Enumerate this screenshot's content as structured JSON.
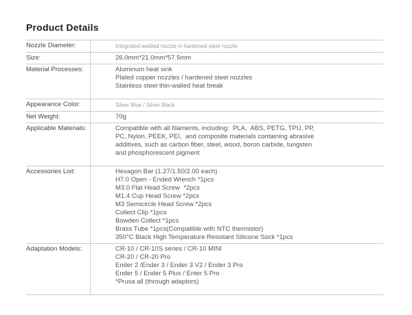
{
  "page": {
    "title": "Product Details"
  },
  "colors": {
    "background": "#ffffff",
    "title_text": "#1d1d1f",
    "label_text": "#474747",
    "value_text": "#565656",
    "muted_value_text": "#9c9c9c",
    "border": "#c9c9c9"
  },
  "table": {
    "rows": [
      {
        "label": "Nozzle Diameter:",
        "muted": true,
        "lines": [
          "Integrated welded nozzle in hardened steel nozzle"
        ]
      },
      {
        "label": "Size:",
        "lines": [
          "26.0mm*21.0mm*57.5mm"
        ]
      },
      {
        "label": "Material Processes:",
        "spacer": true,
        "lines": [
          "Aluminum heat sink",
          "Plated copper nozzles / hardened steel nozzles",
          "Stainless steel thin-walled heat break"
        ]
      },
      {
        "label": "Appearance Color:",
        "muted": true,
        "lines": [
          "Silver Blue / Silver Black"
        ]
      },
      {
        "label": "Net Weight:",
        "lines": [
          "70g"
        ]
      },
      {
        "label": "Applicable Materials:",
        "spacer": true,
        "lines": [
          "Compatible with all filaments, including:  PLA,  ABS, PETG, TPU, PP,",
          "PC, Nylon, PEEK, PEI,  and composite materials containing abrasive",
          "additives, such as carbon fiber, steel, wood, boron carbide, tungsten",
          "and phosphorescent pigment"
        ]
      },
      {
        "label": "Accessories List:",
        "lines": [
          "Hexagon Bar (1.27/1.50/2.00 each)",
          "H7.0 Open - Ended Wrench *1pcs",
          "M3.0 Flat Head Screw  *2pcs",
          "M1.4 Cup Head Screw *2pcs",
          "M3 Semicircle Head Screw *2pcs",
          "Collect Clip *1pcs",
          "Bowden Collect *1pcs",
          "Brass Tube *1pcs(Compatible with NTC thermistor)",
          "350°C Black High Temperature Resistant Silicone Sock *1pcs"
        ]
      },
      {
        "label": "Adaptation Models:",
        "spacer": true,
        "lines": [
          "CR-10 / CR-10S series / CR-10 MINI",
          "CR-20 / CR-20 Pro",
          "Ender 2 /Ender 3 / Ender 3 V2 / Ender 3 Pro",
          "Ender 5 / Ender 5 Plus / Enter 5 Pro",
          "*Prusa all (through adaptors)"
        ]
      }
    ]
  }
}
